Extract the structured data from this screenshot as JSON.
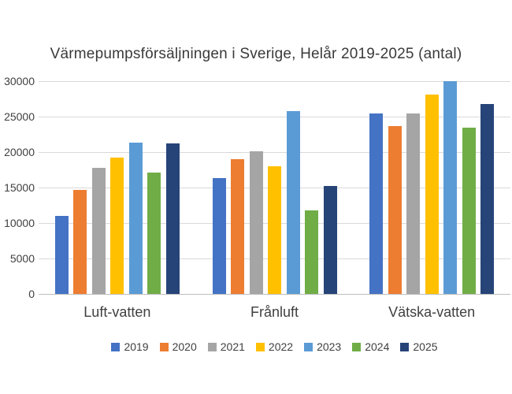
{
  "chart_data": {
    "type": "bar",
    "title": "Värmepumpsförsäljningen i Sverige, Helår 2019-2025 (antal)",
    "categories": [
      "Luft-vatten",
      "Frånluft",
      "Vätska-vatten"
    ],
    "series": [
      {
        "name": "2019",
        "color": "#4472C4",
        "values": [
          11000,
          16300,
          25400
        ]
      },
      {
        "name": "2020",
        "color": "#ED7D31",
        "values": [
          14700,
          19000,
          23700
        ]
      },
      {
        "name": "2021",
        "color": "#A5A5A5",
        "values": [
          17800,
          20100,
          25500
        ]
      },
      {
        "name": "2022",
        "color": "#FFC000",
        "values": [
          19200,
          18000,
          28100
        ]
      },
      {
        "name": "2023",
        "color": "#5B9BD5",
        "values": [
          21300,
          25800,
          30000
        ]
      },
      {
        "name": "2024",
        "color": "#70AD47",
        "values": [
          17100,
          11800,
          23500
        ]
      },
      {
        "name": "2025",
        "color": "#264478",
        "values": [
          21200,
          15200,
          26800
        ]
      }
    ],
    "xlabel": "",
    "ylabel": "",
    "ylim": [
      0,
      30000
    ],
    "yticks": [
      0,
      5000,
      10000,
      15000,
      20000,
      25000,
      30000
    ],
    "grid": true,
    "gridline_color": "#d9d9d9",
    "legend_position": "bottom",
    "background_color": "#ffffff"
  }
}
